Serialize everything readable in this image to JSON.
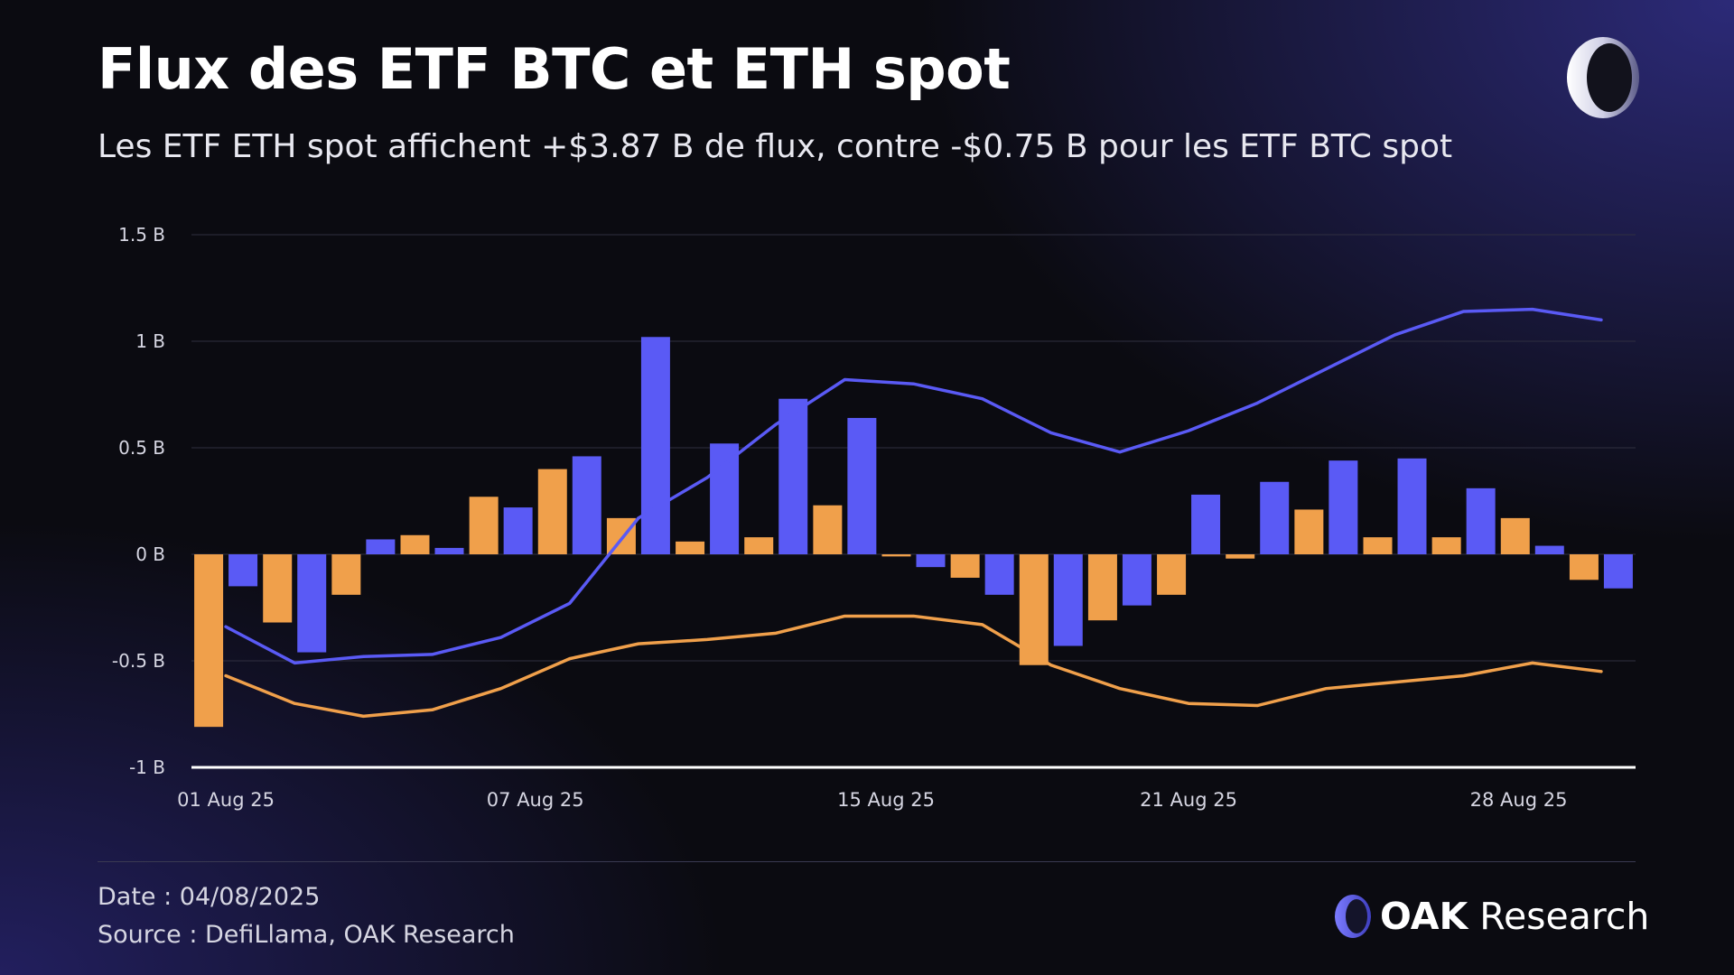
{
  "header": {
    "title": "Flux des ETF BTC et ETH spot",
    "subtitle": "Les ETF ETH spot affichent +$3.87 B de flux, contre -$0.75 B pour les ETF BTC spot"
  },
  "footer": {
    "date": "Date : 04/08/2025",
    "source": "Source : DefiLlama, OAK Research",
    "brand_strong": "OAK",
    "brand_light": " Research"
  },
  "icons": {
    "top_logo": "oak-ring-logo-icon",
    "brand_logo": "oak-ring-logo-icon"
  },
  "colors": {
    "btc": "#F0A04B",
    "eth": "#5A5AF5",
    "grid": "#2f2f40",
    "axis": "#ffffff",
    "text": "#d6d6e2"
  },
  "chart_data": {
    "type": "bar",
    "ylim": [
      -1,
      1.5
    ],
    "y_ticks": [
      {
        "value": 1.5,
        "label": "1.5 B"
      },
      {
        "value": 1,
        "label": "1 B"
      },
      {
        "value": 0.5,
        "label": "0.5 B"
      },
      {
        "value": 0,
        "label": "0 B"
      },
      {
        "value": -0.5,
        "label": "-0.5 B"
      },
      {
        "value": -1,
        "label": "-1 B"
      }
    ],
    "x_ticks": [
      {
        "index": 0,
        "label": "01 Aug 25"
      },
      {
        "index": 4.5,
        "label": "07 Aug 25"
      },
      {
        "index": 9.6,
        "label": "15 Aug 25"
      },
      {
        "index": 14,
        "label": "21 Aug 25"
      },
      {
        "index": 18.8,
        "label": "28 Aug 25"
      }
    ],
    "series": [
      {
        "key": "btc",
        "kind": "bar",
        "color": "#F0A04B",
        "values": [
          -0.81,
          -0.32,
          -0.19,
          0.09,
          0.27,
          0.4,
          0.17,
          0.06,
          0.08,
          0.23,
          -0.01,
          -0.11,
          -0.52,
          -0.31,
          -0.19,
          -0.02,
          0.21,
          0.08,
          0.08,
          0.17,
          -0.12
        ]
      },
      {
        "key": "eth",
        "kind": "bar",
        "color": "#5A5AF5",
        "values": [
          -0.15,
          -0.46,
          0.07,
          0.03,
          0.22,
          0.46,
          1.02,
          0.52,
          0.73,
          0.64,
          -0.06,
          -0.19,
          -0.43,
          -0.24,
          0.28,
          0.34,
          0.44,
          0.45,
          0.31,
          0.04,
          -0.16
        ]
      },
      {
        "key": "eth_trend",
        "kind": "line",
        "color": "#5A5AF5",
        "values": [
          -0.34,
          -0.51,
          -0.48,
          -0.47,
          -0.39,
          -0.23,
          0.17,
          0.36,
          0.61,
          0.82,
          0.8,
          0.73,
          0.57,
          0.48,
          0.58,
          0.71,
          0.87,
          1.03,
          1.14,
          1.15,
          1.1
        ]
      },
      {
        "key": "btc_trend",
        "kind": "line",
        "color": "#F0A04B",
        "values": [
          -0.57,
          -0.7,
          -0.76,
          -0.73,
          -0.63,
          -0.49,
          -0.42,
          -0.4,
          -0.37,
          -0.29,
          -0.29,
          -0.33,
          -0.52,
          -0.63,
          -0.7,
          -0.71,
          -0.63,
          -0.6,
          -0.57,
          -0.51,
          -0.55
        ]
      }
    ]
  }
}
